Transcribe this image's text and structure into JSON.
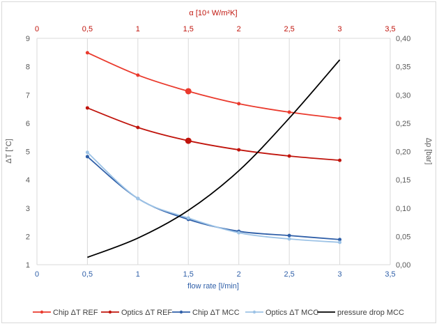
{
  "chart_data": {
    "type": "line",
    "xlabel": "flow rate [l/min]",
    "x2label": "α [10⁴ W/m²K]",
    "ylabel": "ΔT [°C]",
    "y2label": "Δp [bar]",
    "xlim": [
      0,
      3.5
    ],
    "xticks": [
      "0",
      "0,5",
      "1",
      "1,5",
      "2",
      "2,5",
      "3",
      "3,5"
    ],
    "x2ticks": [
      "0",
      "0,5",
      "1",
      "1,5",
      "2",
      "2,5",
      "3",
      "3,5"
    ],
    "ylim": [
      1,
      9
    ],
    "yticks": [
      "1",
      "2",
      "3",
      "4",
      "5",
      "6",
      "7",
      "8",
      "9"
    ],
    "y2lim": [
      0,
      0.4
    ],
    "y2ticks": [
      "0,00",
      "0,05",
      "0,10",
      "0,15",
      "0,20",
      "0,25",
      "0,30",
      "0,35",
      "0,40"
    ],
    "grid": "vertical",
    "legend": "bottom",
    "x": [
      0.5,
      1,
      1.5,
      2,
      2.5,
      3
    ],
    "series": [
      {
        "name": "Chip ΔT REF",
        "color": "#ea3a2d",
        "axis": "left",
        "markers": true,
        "values": [
          8.49,
          7.7,
          7.13,
          6.69,
          6.39,
          6.17
        ]
      },
      {
        "name": "Optics ΔT REF",
        "color": "#c0140c",
        "axis": "left",
        "markers": true,
        "values": [
          6.54,
          5.85,
          5.38,
          5.06,
          4.84,
          4.69
        ]
      },
      {
        "name": "Chip ΔT MCC",
        "color": "#2f5fa8",
        "axis": "left",
        "markers": true,
        "values": [
          4.82,
          3.34,
          2.6,
          2.18,
          2.03,
          1.89
        ]
      },
      {
        "name": "Optics ΔT MCC",
        "color": "#9dc3e6",
        "axis": "left",
        "markers": true,
        "values": [
          4.97,
          3.34,
          2.65,
          2.13,
          1.91,
          1.79
        ]
      },
      {
        "name": "pressure drop MCC",
        "color": "#000000",
        "axis": "right",
        "markers": false,
        "values": [
          0.013,
          0.047,
          0.096,
          0.166,
          0.259,
          0.362
        ]
      }
    ],
    "highlight_x": 1.5,
    "colors": {
      "top_axis": "#c0140c",
      "bottom_axis": "#2f5fa8",
      "axis_text": "#595959",
      "grid": "#d9d9d9"
    }
  }
}
